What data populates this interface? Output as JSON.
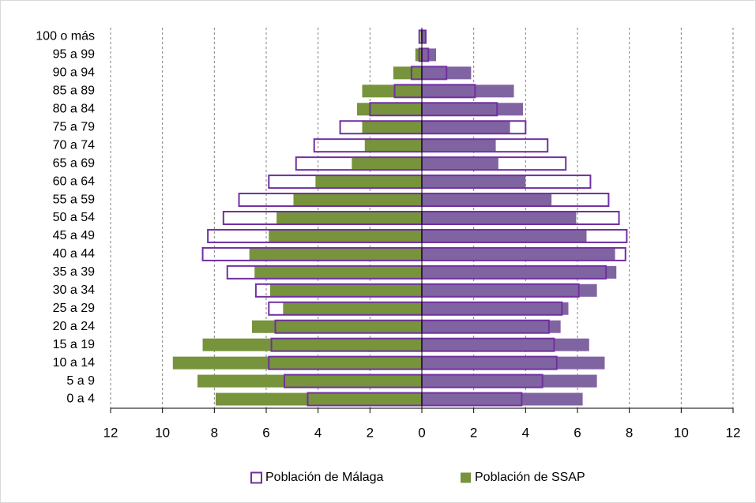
{
  "chart_data": {
    "type": "pyramid",
    "categories": [
      "100 o más",
      "95 a 99",
      "90 a 94",
      "85 a 89",
      "80 a 84",
      "75 a 79",
      "70 a 74",
      "65 a 69",
      "60 a 64",
      "55 a 59",
      "50 a 54",
      "45 a 49",
      "40 a 44",
      "35 a 39",
      "30 a 34",
      "25 a 29",
      "20 a 24",
      "15 a 19",
      "10 a 14",
      "5 a 9",
      "0 a 4"
    ],
    "series": [
      {
        "name": "Población de SSAP",
        "style": "filled",
        "color": "#77933c",
        "color_right": "#8064a2",
        "values": [
          -0.05,
          -0.25,
          -1.1,
          -2.3,
          -2.5,
          -2.3,
          -2.2,
          -2.7,
          -4.1,
          -4.95,
          -5.6,
          -5.9,
          -6.65,
          -6.45,
          -5.85,
          -5.35,
          -6.55,
          -8.45,
          -9.6,
          -8.65,
          -7.95
        ],
        "values_right": [
          0.15,
          0.55,
          1.9,
          3.55,
          3.9,
          3.4,
          2.85,
          2.95,
          4.0,
          5.0,
          5.95,
          6.35,
          7.45,
          7.5,
          6.75,
          5.65,
          5.35,
          6.45,
          7.05,
          6.75,
          6.2
        ]
      },
      {
        "name": "Población de Málaga",
        "style": "outline",
        "color": "#7030a0",
        "values": [
          -0.1,
          -0.1,
          -0.4,
          -1.05,
          -2.0,
          -3.15,
          -4.15,
          -4.85,
          -5.9,
          -7.05,
          -7.65,
          -8.25,
          -8.45,
          -7.5,
          -6.4,
          -5.9,
          -5.65,
          -5.8,
          -5.9,
          -5.3,
          -4.4
        ],
        "values_right": [
          0.15,
          0.25,
          0.95,
          2.05,
          2.9,
          4.0,
          4.85,
          5.55,
          6.5,
          7.2,
          7.6,
          7.9,
          7.85,
          7.1,
          6.05,
          5.4,
          4.9,
          5.1,
          5.2,
          4.65,
          3.85
        ]
      }
    ],
    "legend_order": [
      1,
      0
    ],
    "xlim": [
      -12,
      12
    ],
    "xticks": [
      {
        "value": -12,
        "label": "12"
      },
      {
        "value": -10,
        "label": "10"
      },
      {
        "value": -8,
        "label": "8"
      },
      {
        "value": -6,
        "label": "6"
      },
      {
        "value": -4,
        "label": "4"
      },
      {
        "value": -2,
        "label": "2"
      },
      0,
      2,
      4,
      6,
      8,
      10,
      12
    ],
    "grid": true
  }
}
